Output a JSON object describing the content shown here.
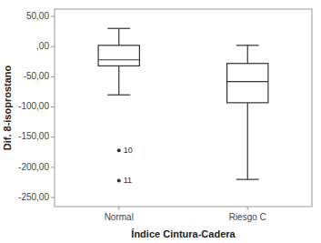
{
  "chart_data": {
    "type": "box",
    "xlabel": "Índice Cintura-Cadera",
    "ylabel": "Dif. 8-isoprostano",
    "categories": [
      "Normal",
      "Riesgo C"
    ],
    "color": "#333333",
    "boxes": [
      {
        "whisker_low": -80,
        "q1": -32,
        "median": -22,
        "q3": 2,
        "whisker_high": 30,
        "outliers": [
          -172,
          -222
        ],
        "outlier_labels": [
          "10",
          "11"
        ]
      },
      {
        "whisker_low": -220,
        "q1": -93,
        "median": -58,
        "q3": -28,
        "whisker_high": 2
      }
    ],
    "ylim": [
      -265,
      62
    ],
    "yticks": [
      {
        "value": 50,
        "label": "50,00"
      },
      {
        "value": 0,
        "label": ",00"
      },
      {
        "value": -50,
        "label": "-50,00"
      },
      {
        "value": -100,
        "label": "-100,00"
      },
      {
        "value": -150,
        "label": "-150,00"
      },
      {
        "value": -200,
        "label": "-200,00"
      },
      {
        "value": -250,
        "label": "-250,00"
      }
    ]
  }
}
